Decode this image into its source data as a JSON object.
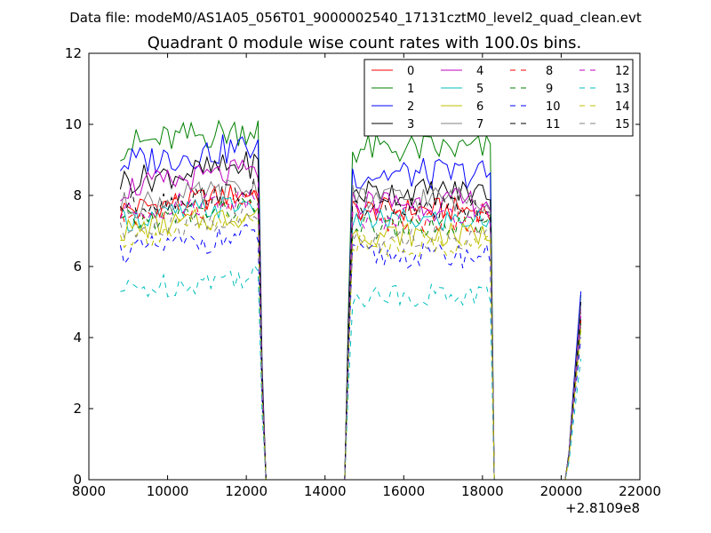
{
  "chart_data": {
    "type": "line",
    "suptitle": "Data file: modeM0/AS1A05_056T01_9000002540_17131cztM0_level2_quad_clean.evt",
    "title": "Quadrant 0 module wise count rates with 100.0s bins.",
    "xlabel": "",
    "ylabel": "",
    "x_offset_label": "+2.8109e8",
    "xlim": [
      8000,
      22000
    ],
    "ylim": [
      0,
      12
    ],
    "xticks": [
      8000,
      10000,
      12000,
      14000,
      16000,
      18000,
      20000,
      22000
    ],
    "yticks": [
      0,
      2,
      4,
      6,
      8,
      10,
      12
    ],
    "grid": false,
    "legend_placement": "top-right",
    "segments": [
      {
        "start": 8800,
        "end": 12300,
        "step": 100
      },
      {
        "start": 14600,
        "end": 18200,
        "step": 100
      },
      {
        "start": 20300,
        "end": 20500,
        "step": 100
      }
    ],
    "gap_points": [
      {
        "x": 12400,
        "value_fraction": 0.35
      },
      {
        "x": 12500,
        "value": 0
      },
      {
        "x": 14500,
        "value": 0
      },
      {
        "x": 18300,
        "value": 0
      },
      {
        "x": 20100,
        "value": 0
      },
      {
        "x": 20200,
        "value_fraction": 0.15
      }
    ],
    "series": [
      {
        "name": "0",
        "color": "#ff0000",
        "dash": false,
        "level_a": 7.6,
        "level_b": 7.6,
        "amp": 0.35,
        "end_value": 4.5
      },
      {
        "name": "1",
        "color": "#008000",
        "dash": false,
        "level_a": 9.4,
        "level_b": 9.3,
        "amp": 0.45,
        "end_value": 5.2
      },
      {
        "name": "2",
        "color": "#0000ff",
        "dash": false,
        "level_a": 8.9,
        "level_b": 8.6,
        "amp": 0.45,
        "end_value": 5.3
      },
      {
        "name": "3",
        "color": "#000000",
        "dash": false,
        "level_a": 8.4,
        "level_b": 8.1,
        "amp": 0.4,
        "end_value": 5.0
      },
      {
        "name": "4",
        "color": "#bf00bf",
        "dash": false,
        "level_a": 8.2,
        "level_b": 7.8,
        "amp": 0.4,
        "end_value": 4.8
      },
      {
        "name": "5",
        "color": "#00bfbf",
        "dash": false,
        "level_a": 7.3,
        "level_b": 7.3,
        "amp": 0.35,
        "end_value": 4.6
      },
      {
        "name": "6",
        "color": "#bfbf00",
        "dash": false,
        "level_a": 7.0,
        "level_b": 6.9,
        "amp": 0.35,
        "end_value": 4.3
      },
      {
        "name": "7",
        "color": "#808080",
        "dash": false,
        "level_a": 7.7,
        "level_b": 7.9,
        "amp": 0.4,
        "end_value": 4.9
      },
      {
        "name": "8",
        "color": "#ff0000",
        "dash": true,
        "level_a": 7.4,
        "level_b": 7.3,
        "amp": 0.35,
        "end_value": 4.5
      },
      {
        "name": "9",
        "color": "#008000",
        "dash": true,
        "level_a": 7.2,
        "level_b": 7.1,
        "amp": 0.35,
        "end_value": 4.4
      },
      {
        "name": "10",
        "color": "#0000ff",
        "dash": true,
        "level_a": 6.4,
        "level_b": 6.3,
        "amp": 0.35,
        "end_value": 4.0
      },
      {
        "name": "11",
        "color": "#000000",
        "dash": true,
        "level_a": 7.7,
        "level_b": 7.6,
        "amp": 0.35,
        "end_value": 4.7
      },
      {
        "name": "12",
        "color": "#bf00bf",
        "dash": true,
        "level_a": 7.5,
        "level_b": 7.4,
        "amp": 0.35,
        "end_value": 4.6
      },
      {
        "name": "13",
        "color": "#00bfbf",
        "dash": true,
        "level_a": 5.3,
        "level_b": 5.2,
        "amp": 0.35,
        "end_value": 3.4
      },
      {
        "name": "14",
        "color": "#bfbf00",
        "dash": true,
        "level_a": 6.8,
        "level_b": 6.6,
        "amp": 0.35,
        "end_value": 4.2
      },
      {
        "name": "15",
        "color": "#808080",
        "dash": true,
        "level_a": 6.9,
        "level_b": 6.8,
        "amp": 0.35,
        "end_value": 4.3
      }
    ]
  }
}
